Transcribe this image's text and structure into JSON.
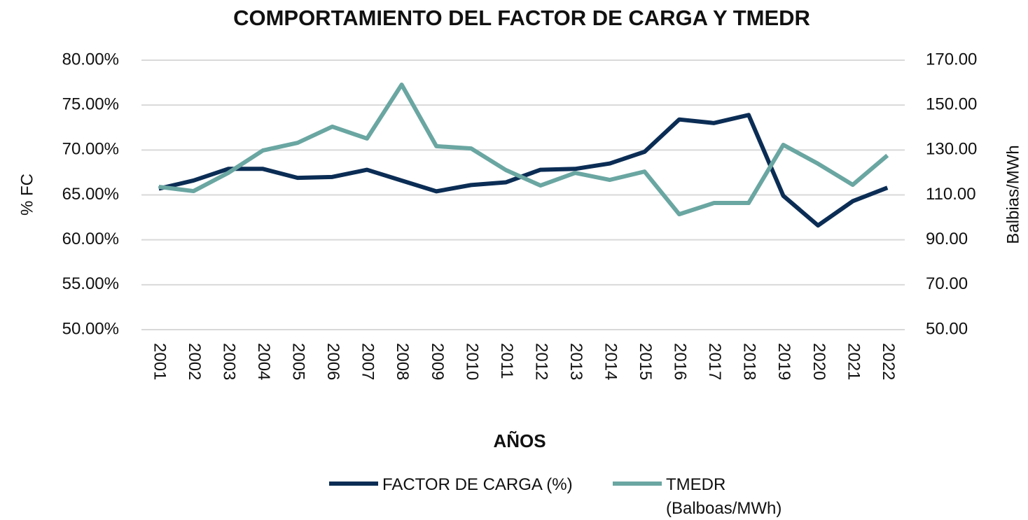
{
  "chart_data": {
    "type": "line",
    "title": "COMPORTAMIENTO DEL FACTOR DE CARGA Y TMEDR",
    "x_label": "AÑOS",
    "y_label": "% FC",
    "y2_label": "Balbias/MWh",
    "categories": [
      "2001",
      "2002",
      "2003",
      "2004",
      "2005",
      "2006",
      "2007",
      "2008",
      "2009",
      "2010",
      "2011",
      "2012",
      "2013",
      "2014",
      "2015",
      "2016",
      "2017",
      "2018",
      "2019",
      "2020",
      "2021",
      "2022"
    ],
    "series": [
      {
        "name": "FACTOR DE CARGA (%)",
        "color": "#0b2d55",
        "values": [
          65.7,
          66.6,
          67.9,
          67.9,
          66.9,
          67.0,
          67.8,
          66.6,
          65.4,
          66.1,
          66.4,
          67.8,
          67.9,
          68.5,
          69.8,
          73.4,
          73.0,
          73.9,
          64.9,
          61.6,
          64.3,
          65.8
        ]
      },
      {
        "name": "TMEDR (Balboas/MWh)",
        "color": "#6aa6a2",
        "axis": "y2",
        "values": [
          113.6,
          111.7,
          119.8,
          129.8,
          133.2,
          140.4,
          135.1,
          159.1,
          131.7,
          130.7,
          121.1,
          114.2,
          119.8,
          116.7,
          120.4,
          101.4,
          106.4,
          106.4,
          132.3,
          123.9,
          114.5,
          127.6
        ]
      }
    ],
    "ylim": [
      50,
      80
    ],
    "yticks": [
      {
        "value": 50,
        "label": "50.00%"
      },
      {
        "value": 55,
        "label": "55.00%"
      },
      {
        "value": 60,
        "label": "60.00%"
      },
      {
        "value": 65,
        "label": "65.00%"
      },
      {
        "value": 70,
        "label": "70.00%"
      },
      {
        "value": 75,
        "label": "75.00%"
      },
      {
        "value": 80,
        "label": "80.00%"
      }
    ],
    "y2lim": [
      50,
      170
    ],
    "y2ticks": [
      {
        "value": 50,
        "label": "50.00"
      },
      {
        "value": 70,
        "label": "70.00"
      },
      {
        "value": 90,
        "label": "90.00"
      },
      {
        "value": 110,
        "label": "110.00"
      },
      {
        "value": 130,
        "label": "130.00"
      },
      {
        "value": 150,
        "label": "150.00"
      },
      {
        "value": 170,
        "label": "170.00"
      }
    ],
    "grid": true,
    "legend": "bottom"
  }
}
